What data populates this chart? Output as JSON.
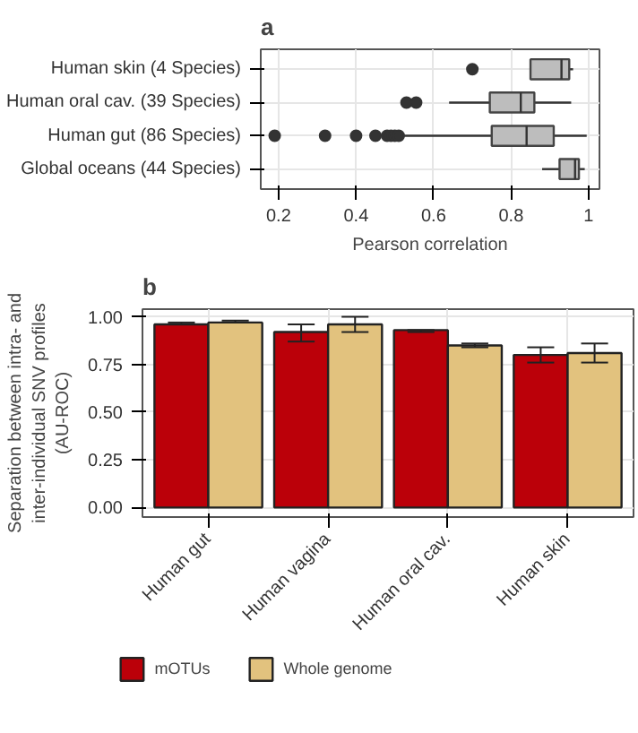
{
  "chart_data": [
    {
      "type": "box",
      "title": "a",
      "orientation": "horizontal",
      "xlabel": "Pearson correlation",
      "xlim": [
        0.154,
        1.028
      ],
      "xticks": [
        0.2,
        0.4,
        0.6,
        0.8,
        1.0
      ],
      "grid": true,
      "categories": [
        "Human skin (4 Species)",
        "Human oral cav. (39 Species)",
        "Human gut (86 Species)",
        "Global oceans (44 Species)"
      ],
      "color": "#bdbdbd",
      "boxes": [
        {
          "low": 0.85,
          "q1": 0.85,
          "median": 0.93,
          "q3": 0.95,
          "high": 0.96,
          "outliers": [
            0.7
          ]
        },
        {
          "low": 0.64,
          "q1": 0.745,
          "median": 0.825,
          "q3": 0.86,
          "high": 0.955,
          "outliers": [
            0.53,
            0.555
          ]
        },
        {
          "low": 0.52,
          "q1": 0.75,
          "median": 0.84,
          "q3": 0.91,
          "high": 0.995,
          "outliers": [
            0.19,
            0.32,
            0.4,
            0.45,
            0.48,
            0.49,
            0.5,
            0.51
          ]
        },
        {
          "low": 0.88,
          "q1": 0.925,
          "median": 0.965,
          "q3": 0.975,
          "high": 0.99
        }
      ]
    },
    {
      "type": "bar",
      "title": "b",
      "ylabel": "Separation between intra- and\ninter-individual SNV profiles\n(AU-ROC)",
      "ylim": [
        -0.05,
        1.04
      ],
      "yticks": [
        {
          "value": 0,
          "label": "0.00"
        },
        {
          "value": 0.25,
          "label": "0.25"
        },
        {
          "value": 0.5,
          "label": "0.50"
        },
        {
          "value": 0.75,
          "label": "0.75"
        },
        {
          "value": 1,
          "label": "1.00"
        }
      ],
      "grid": true,
      "legend": "bottom",
      "categories": [
        "Human gut",
        "Human vagina",
        "Human oral cav.",
        "Human skin"
      ],
      "series": [
        {
          "name": "mOTUs",
          "color": "#bb0009",
          "values": [
            0.96,
            0.92,
            0.93,
            0.8
          ],
          "errors": [
            [
              0.96,
              0.97
            ],
            [
              0.87,
              0.96
            ],
            [
              0.92,
              0.93
            ],
            [
              0.76,
              0.84
            ]
          ]
        },
        {
          "name": "Whole genome",
          "color": "#e2c27e",
          "values": [
            0.97,
            0.96,
            0.85,
            0.81
          ],
          "errors": [
            [
              0.97,
              0.98
            ],
            [
              0.92,
              1.0
            ],
            [
              0.84,
              0.86
            ],
            [
              0.76,
              0.86
            ]
          ]
        }
      ]
    }
  ]
}
